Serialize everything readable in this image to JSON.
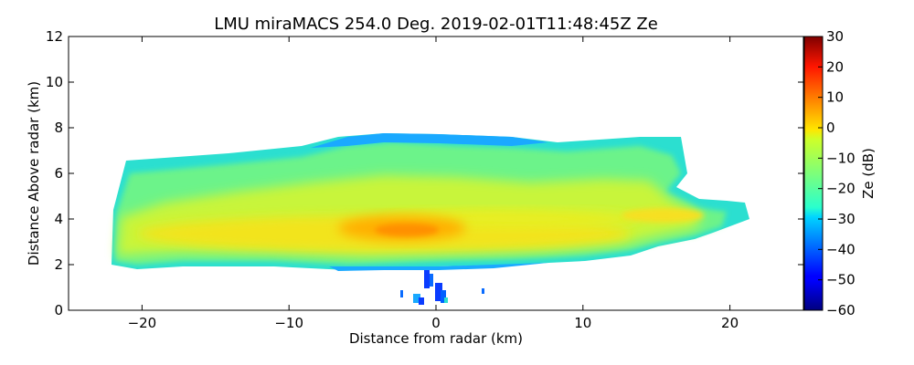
{
  "chart_data": {
    "type": "heatmap",
    "title": "LMU miraMACS 254.0 Deg. 2019-02-01T11:48:45Z  Ze",
    "xlabel": "Distance from radar (km)",
    "ylabel": "Distance Above radar  (km)",
    "xlim": [
      -25,
      25
    ],
    "ylim": [
      0,
      12
    ],
    "xticks": [
      -20,
      -10,
      0,
      10,
      20
    ],
    "xtick_labels": [
      "−20",
      "−10",
      "0",
      "10",
      "20"
    ],
    "yticks": [
      0,
      2,
      4,
      6,
      8,
      10,
      12
    ],
    "ytick_labels": [
      "0",
      "2",
      "4",
      "6",
      "8",
      "10",
      "12"
    ],
    "colorbar": {
      "label": "Ze (dB)",
      "range": [
        -60,
        30
      ],
      "ticks": [
        30,
        20,
        10,
        0,
        -10,
        -20,
        -30,
        -40,
        -50,
        -60
      ],
      "tick_labels": [
        "30",
        "20",
        "10",
        "0",
        "−10",
        "−20",
        "−30",
        "−40",
        "−50",
        "−60"
      ],
      "colormap": "jet"
    },
    "features": [
      {
        "name": "main-precip-layer",
        "x_range": [
          -22,
          21
        ],
        "height_range": [
          1.8,
          7.8
        ],
        "typical_ze_db": [
          -25,
          -5
        ]
      },
      {
        "name": "bright-core",
        "center_x": -2,
        "center_height": 3.5,
        "peak_ze_db": 5
      },
      {
        "name": "near-surface-clutter",
        "x_range": [
          -3,
          3.5
        ],
        "height_range": [
          0,
          1.8
        ],
        "typical_ze_db": [
          -50,
          -30
        ]
      }
    ]
  }
}
